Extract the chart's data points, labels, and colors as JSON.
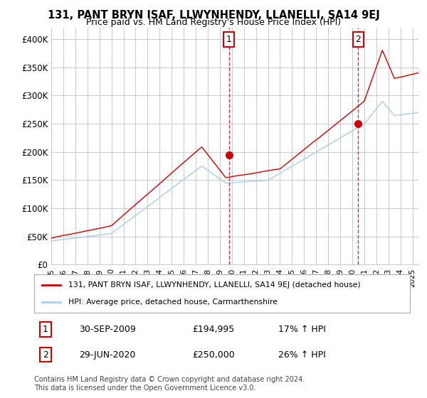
{
  "title": "131, PANT BRYN ISAF, LLWYNHENDY, LLANELLI, SA14 9EJ",
  "subtitle": "Price paid vs. HM Land Registry's House Price Index (HPI)",
  "ylabel_ticks": [
    "£0",
    "£50K",
    "£100K",
    "£150K",
    "£200K",
    "£250K",
    "£300K",
    "£350K",
    "£400K"
  ],
  "ytick_values": [
    0,
    50000,
    100000,
    150000,
    200000,
    250000,
    300000,
    350000,
    400000
  ],
  "ylim": [
    0,
    420000
  ],
  "xlim_start": 1995.0,
  "xlim_end": 2025.5,
  "bg_color": "#ffffff",
  "grid_color": "#cccccc",
  "red_line_color": "#cc0000",
  "blue_line_color": "#aaccee",
  "marker1_x": 2009.75,
  "marker1_y": 194995,
  "marker1_label": "1",
  "marker2_x": 2020.5,
  "marker2_y": 250000,
  "marker2_label": "2",
  "vline1_x": 2009.75,
  "vline2_x": 2020.5,
  "vline_color": "#cc0000",
  "vline_alpha": 0.5,
  "legend_red_label": "131, PANT BRYN ISAF, LLWYNHENDY, LLANELLI, SA14 9EJ (detached house)",
  "legend_blue_label": "HPI: Average price, detached house, Carmarthenshire",
  "annotation1_num": "1",
  "annotation1_date": "30-SEP-2009",
  "annotation1_price": "£194,995",
  "annotation1_hpi": "17% ↑ HPI",
  "annotation2_num": "2",
  "annotation2_date": "29-JUN-2020",
  "annotation2_price": "£250,000",
  "annotation2_hpi": "26% ↑ HPI",
  "footer": "Contains HM Land Registry data © Crown copyright and database right 2024.\nThis data is licensed under the Open Government Licence v3.0.",
  "xtick_years": [
    1995,
    1996,
    1997,
    1998,
    1999,
    2000,
    2001,
    2002,
    2003,
    2004,
    2005,
    2006,
    2007,
    2008,
    2009,
    2010,
    2011,
    2012,
    2013,
    2014,
    2015,
    2016,
    2017,
    2018,
    2019,
    2020,
    2021,
    2022,
    2023,
    2024,
    2025
  ]
}
